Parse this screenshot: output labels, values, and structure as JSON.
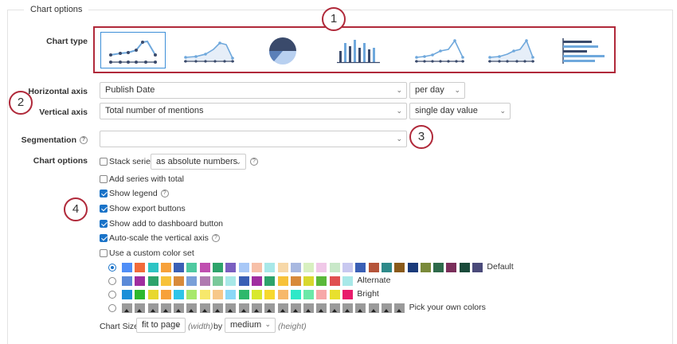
{
  "section": {
    "legend": "Chart options"
  },
  "labels": {
    "chart_type": "Chart type",
    "horizontal_axis": "Horizontal axis",
    "vertical_axis": "Vertical axis",
    "segmentation": "Segmentation",
    "chart_options": "Chart options"
  },
  "chart_types": [
    {
      "name": "line-with-markers",
      "selected": true
    },
    {
      "name": "area-with-markers",
      "selected": false
    },
    {
      "name": "pie",
      "selected": false
    },
    {
      "name": "bar",
      "selected": false
    },
    {
      "name": "line",
      "selected": false
    },
    {
      "name": "area",
      "selected": false
    },
    {
      "name": "horizontal-bar",
      "selected": false
    }
  ],
  "horizontal_axis": {
    "field": "Publish Date",
    "interval": "per day"
  },
  "vertical_axis": {
    "field": "Total number of mentions",
    "mode": "single day value"
  },
  "segmentation": {
    "value": ""
  },
  "options": {
    "stack_series": {
      "label": "Stack series",
      "checked": false,
      "mode": "as absolute numbers"
    },
    "add_total": {
      "label": "Add series with total",
      "checked": false
    },
    "show_legend": {
      "label": "Show legend",
      "checked": true
    },
    "show_export": {
      "label": "Show export buttons",
      "checked": true
    },
    "show_dashboard": {
      "label": "Show add to dashboard button",
      "checked": true
    },
    "auto_scale": {
      "label": "Auto-scale the vertical axis",
      "checked": true
    },
    "custom_colors": {
      "label": "Use a custom color set",
      "checked": false
    }
  },
  "color_sets": [
    {
      "label": "Default",
      "selected": true,
      "colors": [
        "#4f8ef7",
        "#f26b3a",
        "#2ec4c4",
        "#f7a13a",
        "#3a5fb5",
        "#4fc9a0",
        "#c04fb0",
        "#2ea36b",
        "#7a5fc0",
        "#a8c8f7",
        "#f7c0a8",
        "#a8e8e8",
        "#f7d8a8",
        "#a8b8e0",
        "#d8f0c0",
        "#f0c8e8",
        "#c8e8c8",
        "#c8c8f0",
        "#3a5fb5",
        "#b5543a",
        "#2e8a8a",
        "#8a5a1a",
        "#1a3a7a",
        "#7a8a3a",
        "#2e6a4a",
        "#7a2e5a",
        "#1a4a3a",
        "#4a4a7a"
      ]
    },
    {
      "label": "Alternate",
      "selected": false,
      "colors": [
        "#5b8ad8",
        "#a02ea0",
        "#2ea36b",
        "#f7c23a",
        "#d88a3a",
        "#7aa0d8",
        "#b07ab0",
        "#7ac89a",
        "#a8e8e8",
        "#3a5fb5",
        "#a02ea0",
        "#2ea36b",
        "#f7c23a",
        "#d88a3a",
        "#d8d82e",
        "#5bb83a",
        "#e05050",
        "#a8e8e8"
      ]
    },
    {
      "label": "Bright",
      "selected": false,
      "colors": [
        "#1a8fd8",
        "#2eb82e",
        "#e8d82e",
        "#f7a13a",
        "#2ec4e8",
        "#a8e86b",
        "#f7e86b",
        "#f7c88a",
        "#8ad8f7",
        "#2eb86b",
        "#d8e82e",
        "#f7d82e",
        "#f7b86b",
        "#2ee8c8",
        "#6be8a8",
        "#f7a8a8",
        "#e8e02e",
        "#e81a6b"
      ]
    },
    {
      "label": "Pick your own colors",
      "selected": false,
      "colors": [
        "pick",
        "pick",
        "pick",
        "pick",
        "pick",
        "pick",
        "pick",
        "pick",
        "pick",
        "pick",
        "pick",
        "pick",
        "pick",
        "pick",
        "pick",
        "pick",
        "pick",
        "pick",
        "pick",
        "pick",
        "pick",
        "pick"
      ]
    }
  ],
  "chart_size": {
    "label": "Chart Size",
    "width_value": "fit to page",
    "width_hint": "(width)",
    "by": "by",
    "height_value": "medium",
    "height_hint": "(height)"
  },
  "callouts": [
    "1",
    "2",
    "3",
    "4"
  ],
  "icons": {
    "help": "?",
    "chevron": "⌄"
  },
  "colors": {
    "accent": "#1a73c8",
    "callout_border": "#b0293a",
    "selection_border": "#3d8fd8",
    "chart_line": "#6fa8dc",
    "chart_markers": "#3a4a6b"
  }
}
